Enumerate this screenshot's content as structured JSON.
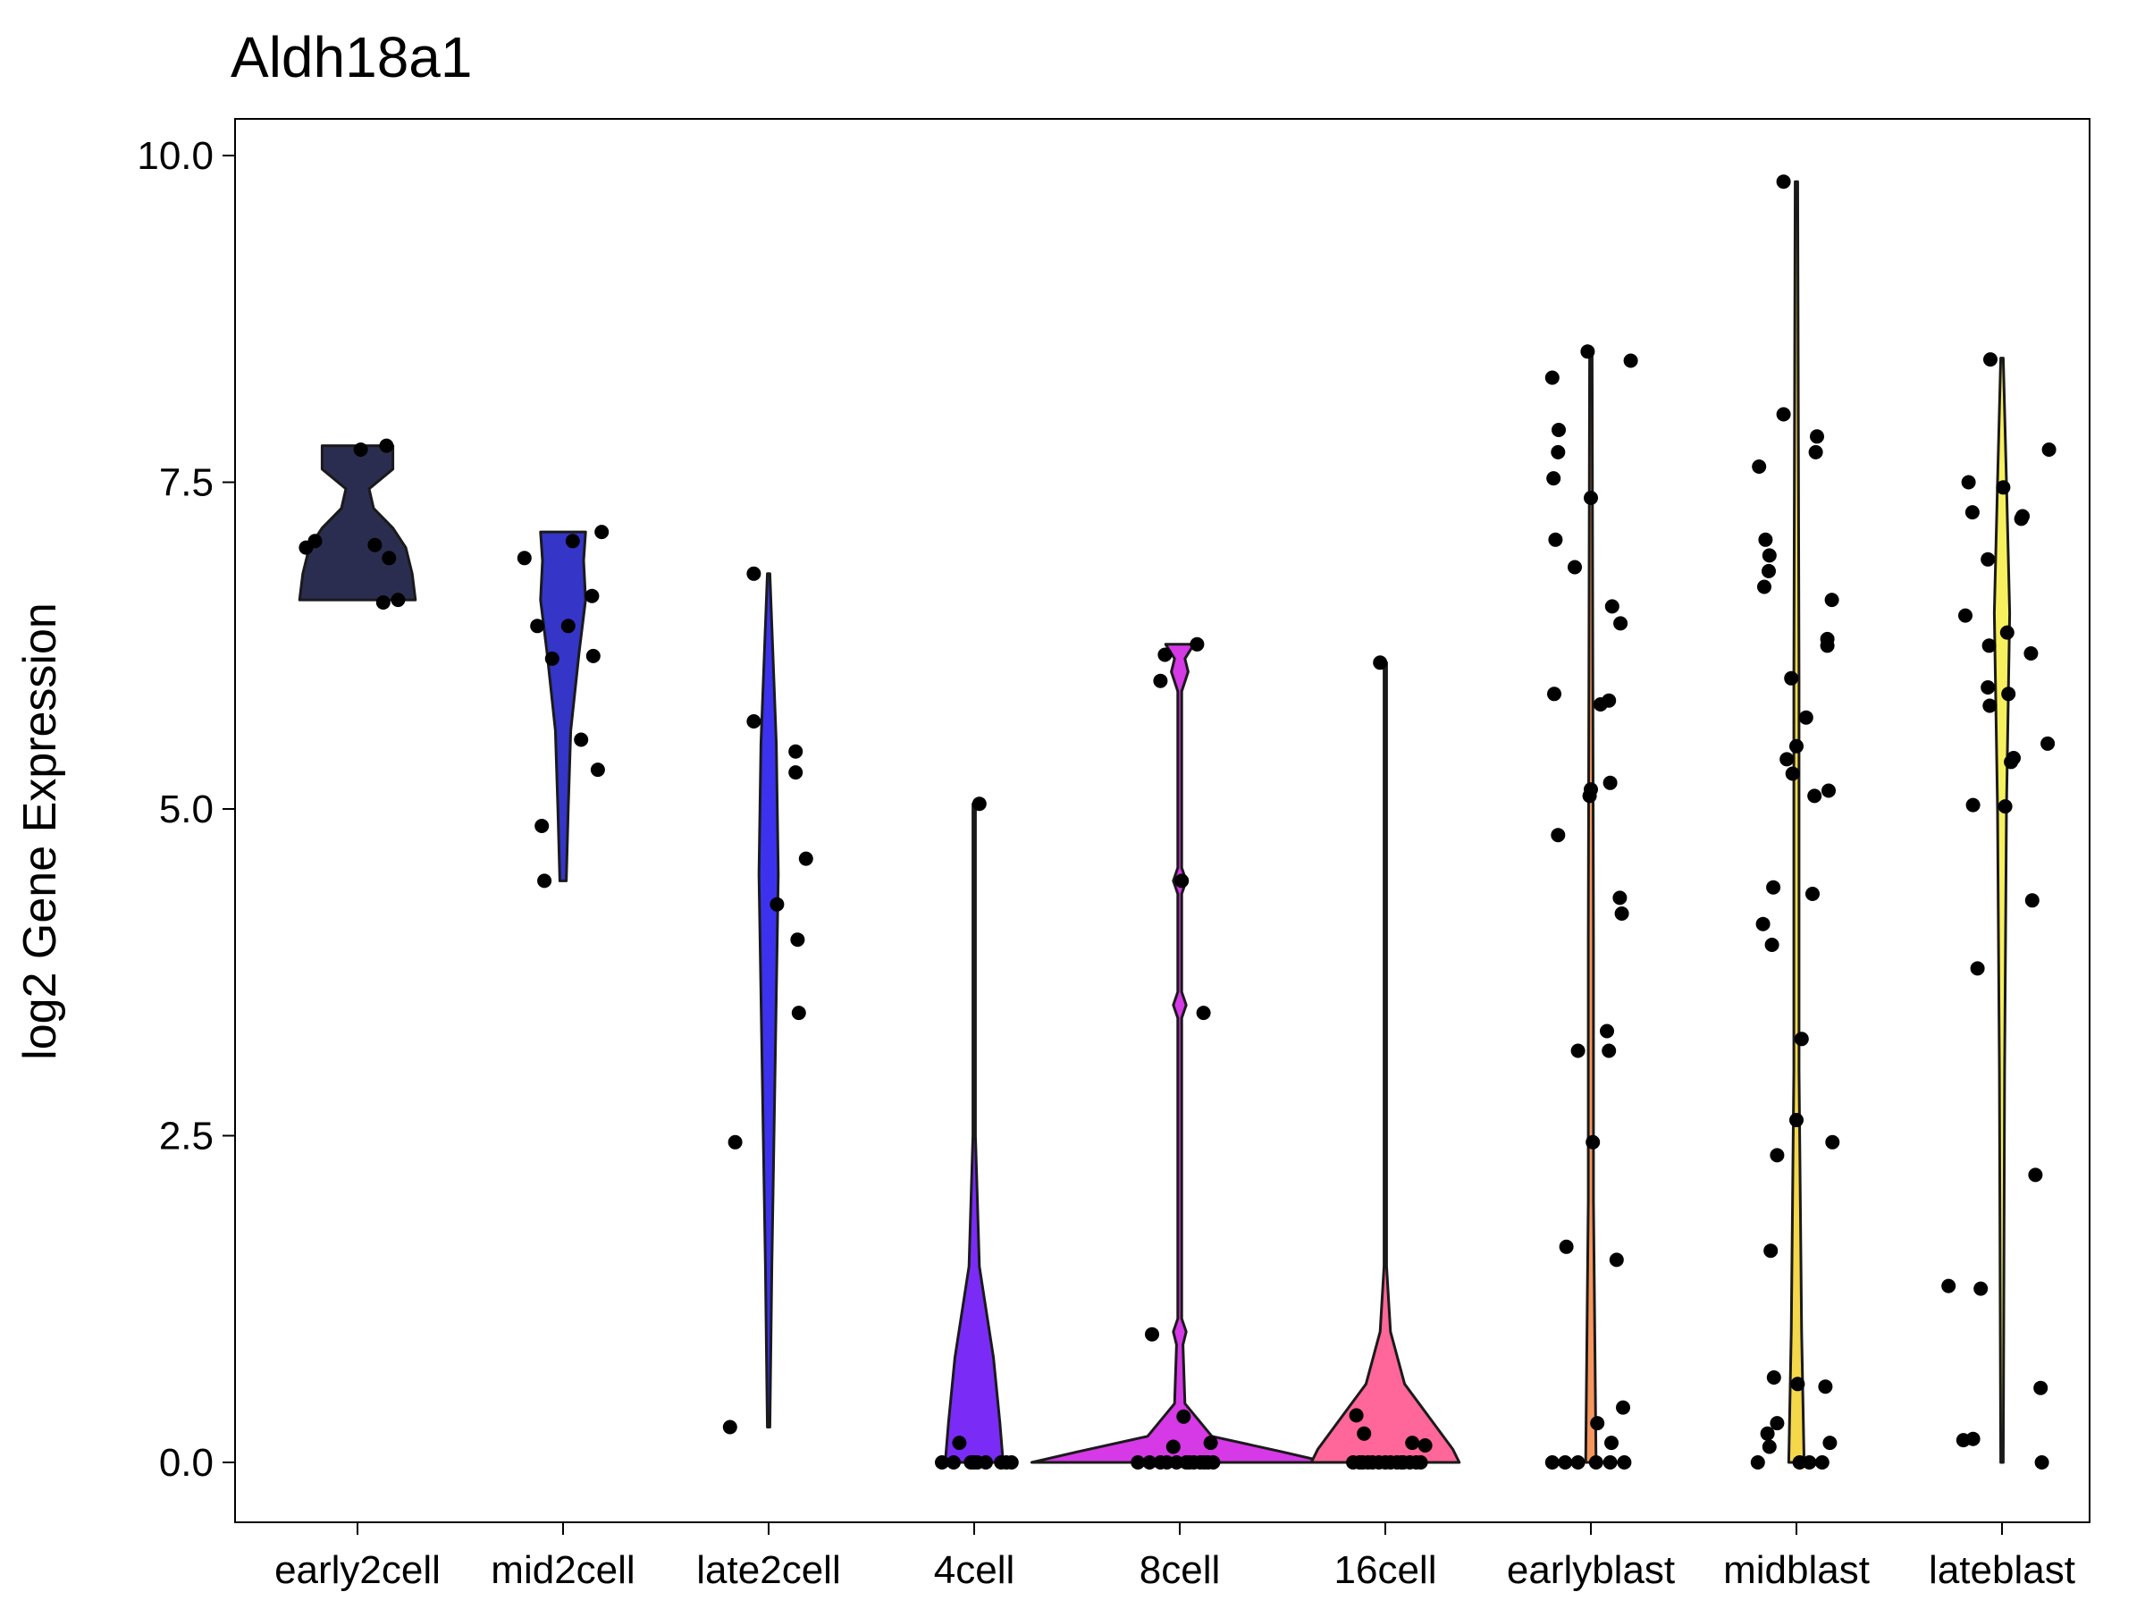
{
  "chart_data": {
    "type": "violin",
    "title": "Aldh18a1",
    "xlabel": "",
    "ylabel": "log2 Gene Expression",
    "ylim": [
      -0.4,
      10.5
    ],
    "yticks": [
      "0.0",
      "2.5",
      "5.0",
      "7.5",
      "10.0"
    ],
    "ytick_values": [
      0,
      2.5,
      5,
      7.5,
      10
    ],
    "grid": false,
    "categories": [
      "early2cell",
      "mid2cell",
      "late2cell",
      "4cell",
      "8cell",
      "16cell",
      "earlyblast",
      "midblast",
      "lateblast"
    ],
    "colors": [
      "#2b2d50",
      "#3535c8",
      "#3c32ee",
      "#7a2cf6",
      "#d639e6",
      "#ff6699",
      "#f7965c",
      "#f5d84a",
      "#f7f05e"
    ],
    "violins": [
      {
        "min": 6.6,
        "max": 7.78,
        "profile": [
          [
            6.6,
            0.9
          ],
          [
            6.8,
            0.85
          ],
          [
            7.0,
            0.75
          ],
          [
            7.15,
            0.55
          ],
          [
            7.3,
            0.25
          ],
          [
            7.45,
            0.18
          ],
          [
            7.6,
            0.55
          ],
          [
            7.78,
            0.55
          ]
        ]
      },
      {
        "min": 4.45,
        "max": 7.12,
        "profile": [
          [
            4.45,
            0.05
          ],
          [
            5.0,
            0.08
          ],
          [
            5.6,
            0.12
          ],
          [
            6.2,
            0.25
          ],
          [
            6.6,
            0.35
          ],
          [
            6.9,
            0.32
          ],
          [
            7.12,
            0.35
          ]
        ]
      },
      {
        "min": 0.27,
        "max": 6.8,
        "profile": [
          [
            0.27,
            0.02
          ],
          [
            1.5,
            0.05
          ],
          [
            3.0,
            0.1
          ],
          [
            4.5,
            0.15
          ],
          [
            5.5,
            0.12
          ],
          [
            6.8,
            0.02
          ]
        ]
      },
      {
        "min": 0.0,
        "max": 5.04,
        "profile": [
          [
            0.0,
            0.45
          ],
          [
            0.3,
            0.4
          ],
          [
            0.8,
            0.3
          ],
          [
            1.5,
            0.08
          ],
          [
            2.5,
            0.02
          ],
          [
            5.04,
            0.02
          ]
        ]
      },
      {
        "min": 0.0,
        "max": 6.26,
        "profile": [
          [
            0.0,
            2.3
          ],
          [
            0.08,
            1.6
          ],
          [
            0.2,
            0.5
          ],
          [
            0.45,
            0.08
          ],
          [
            0.9,
            0.05
          ],
          [
            1.0,
            0.1
          ],
          [
            1.1,
            0.03
          ],
          [
            3.4,
            0.03
          ],
          [
            3.5,
            0.1
          ],
          [
            3.6,
            0.03
          ],
          [
            4.35,
            0.03
          ],
          [
            4.45,
            0.1
          ],
          [
            4.55,
            0.03
          ],
          [
            5.9,
            0.03
          ],
          [
            6.05,
            0.13
          ],
          [
            6.15,
            0.08
          ],
          [
            6.26,
            0.22
          ]
        ]
      },
      {
        "min": 0.0,
        "max": 6.12,
        "profile": [
          [
            0.0,
            1.15
          ],
          [
            0.1,
            1.05
          ],
          [
            0.3,
            0.75
          ],
          [
            0.6,
            0.3
          ],
          [
            1.0,
            0.08
          ],
          [
            1.5,
            0.02
          ],
          [
            6.12,
            0.02
          ]
        ]
      },
      {
        "min": 0.0,
        "max": 8.5,
        "profile": [
          [
            0.0,
            0.08
          ],
          [
            2.0,
            0.04
          ],
          [
            4.0,
            0.04
          ],
          [
            6.0,
            0.03
          ],
          [
            8.5,
            0.02
          ]
        ]
      },
      {
        "min": 0.0,
        "max": 9.8,
        "profile": [
          [
            0.0,
            0.12
          ],
          [
            1.0,
            0.08
          ],
          [
            3.0,
            0.04
          ],
          [
            6.0,
            0.04
          ],
          [
            9.8,
            0.02
          ]
        ]
      },
      {
        "min": 0.0,
        "max": 8.45,
        "profile": [
          [
            0.0,
            0.02
          ],
          [
            3.0,
            0.04
          ],
          [
            5.0,
            0.07
          ],
          [
            6.5,
            0.12
          ],
          [
            7.5,
            0.07
          ],
          [
            8.45,
            0.02
          ]
        ]
      }
    ],
    "points": [
      [
        [
          -0.8,
          7.0
        ],
        [
          -0.66,
          7.05
        ],
        [
          0.05,
          7.75
        ],
        [
          0.27,
          7.02
        ],
        [
          0.4,
          6.58
        ],
        [
          0.49,
          6.92
        ],
        [
          0.63,
          6.6
        ],
        [
          0.45,
          7.78
        ]
      ],
      [
        [
          -0.6,
          6.92
        ],
        [
          -0.4,
          6.4
        ],
        [
          -0.17,
          6.15
        ],
        [
          -0.33,
          4.87
        ],
        [
          -0.29,
          4.45
        ],
        [
          0.08,
          6.4
        ],
        [
          0.15,
          7.05
        ],
        [
          0.28,
          5.53
        ],
        [
          0.45,
          6.63
        ],
        [
          0.47,
          6.17
        ],
        [
          0.54,
          5.3
        ],
        [
          0.6,
          7.12
        ]
      ],
      [
        [
          -0.6,
          0.27
        ],
        [
          -0.52,
          2.45
        ],
        [
          -0.23,
          6.8
        ],
        [
          -0.23,
          5.67
        ],
        [
          0.13,
          4.27
        ],
        [
          0.42,
          5.44
        ],
        [
          0.42,
          5.28
        ],
        [
          0.45,
          4.0
        ],
        [
          0.47,
          3.44
        ],
        [
          0.58,
          4.62
        ]
      ],
      [
        [
          -0.5,
          0.0
        ],
        [
          -0.32,
          0.0
        ],
        [
          -0.23,
          0.15
        ],
        [
          -0.05,
          0.0
        ],
        [
          0.0,
          0.0
        ],
        [
          0.05,
          0.0
        ],
        [
          0.08,
          5.04
        ],
        [
          0.18,
          0.0
        ],
        [
          0.42,
          0.0
        ],
        [
          0.5,
          0.0
        ],
        [
          0.58,
          0.0
        ]
      ],
      [
        [
          -0.65,
          0.0
        ],
        [
          -0.47,
          0.0
        ],
        [
          -0.43,
          0.98
        ],
        [
          -0.3,
          5.98
        ],
        [
          -0.23,
          6.18
        ],
        [
          -0.3,
          0.0
        ],
        [
          -0.1,
          0.12
        ],
        [
          -0.05,
          0.0
        ],
        [
          0.03,
          4.45
        ],
        [
          0.06,
          0.35
        ],
        [
          0.15,
          0.0
        ],
        [
          0.27,
          6.26
        ],
        [
          0.37,
          3.44
        ],
        [
          0.38,
          0.0
        ],
        [
          0.48,
          0.15
        ],
        [
          0.52,
          0.0
        ],
        [
          -0.2,
          0.0
        ],
        [
          0.1,
          0.0
        ],
        [
          0.22,
          0.0
        ],
        [
          0.32,
          0.0
        ],
        [
          0.44,
          0.0
        ]
      ],
      [
        [
          -0.5,
          0.0
        ],
        [
          -0.45,
          0.36
        ],
        [
          -0.4,
          0.0
        ],
        [
          -0.33,
          0.22
        ],
        [
          -0.27,
          0.0
        ],
        [
          -0.2,
          0.0
        ],
        [
          -0.08,
          6.12
        ],
        [
          -0.1,
          0.0
        ],
        [
          0.0,
          0.0
        ],
        [
          0.08,
          0.0
        ],
        [
          0.18,
          0.0
        ],
        [
          0.28,
          0.0
        ],
        [
          0.38,
          0.0
        ],
        [
          0.42,
          0.15
        ],
        [
          0.48,
          0.0
        ],
        [
          0.55,
          0.0
        ],
        [
          0.62,
          0.13
        ],
        [
          -0.35,
          0.0
        ],
        [
          0.25,
          0.0
        ]
      ],
      [
        [
          -0.6,
          8.3
        ],
        [
          -0.58,
          7.53
        ],
        [
          -0.55,
          7.06
        ],
        [
          -0.5,
          7.9
        ],
        [
          -0.51,
          7.73
        ],
        [
          -0.57,
          5.88
        ],
        [
          -0.51,
          4.8
        ],
        [
          -0.6,
          0.0
        ],
        [
          -0.38,
          1.65
        ],
        [
          -0.25,
          6.85
        ],
        [
          -0.2,
          3.15
        ],
        [
          -0.05,
          8.5
        ],
        [
          0.0,
          7.38
        ],
        [
          -0.02,
          5.1
        ],
        [
          0.0,
          5.15
        ],
        [
          0.03,
          2.45
        ],
        [
          0.08,
          0.0
        ],
        [
          0.1,
          0.3
        ],
        [
          0.15,
          5.8
        ],
        [
          0.25,
          3.3
        ],
        [
          0.28,
          3.15
        ],
        [
          0.28,
          5.83
        ],
        [
          0.3,
          5.2
        ],
        [
          0.32,
          0.15
        ],
        [
          0.33,
          6.55
        ],
        [
          0.4,
          1.55
        ],
        [
          0.45,
          4.32
        ],
        [
          0.46,
          6.42
        ],
        [
          0.48,
          4.2
        ],
        [
          0.5,
          0.42
        ],
        [
          0.52,
          0.0
        ],
        [
          0.62,
          8.43
        ],
        [
          -0.4,
          0.0
        ],
        [
          -0.2,
          0.0
        ],
        [
          0.3,
          0.0
        ]
      ],
      [
        [
          -0.58,
          7.62
        ],
        [
          -0.52,
          4.12
        ],
        [
          -0.5,
          6.7
        ],
        [
          -0.48,
          7.06
        ],
        [
          -0.45,
          0.22
        ],
        [
          -0.43,
          6.82
        ],
        [
          -0.42,
          6.94
        ],
        [
          -0.4,
          1.62
        ],
        [
          -0.38,
          3.96
        ],
        [
          -0.36,
          4.4
        ],
        [
          -0.3,
          2.35
        ],
        [
          -0.2,
          8.02
        ],
        [
          -0.15,
          5.38
        ],
        [
          -0.08,
          6.0
        ],
        [
          -0.06,
          5.27
        ],
        [
          0.0,
          5.48
        ],
        [
          0.0,
          2.62
        ],
        [
          0.02,
          0.6
        ],
        [
          0.08,
          3.24
        ],
        [
          0.15,
          5.7
        ],
        [
          0.25,
          4.35
        ],
        [
          0.28,
          5.1
        ],
        [
          0.3,
          7.73
        ],
        [
          0.32,
          7.85
        ],
        [
          0.45,
          0.58
        ],
        [
          0.48,
          6.25
        ],
        [
          0.48,
          6.3
        ],
        [
          0.5,
          5.14
        ],
        [
          0.52,
          0.15
        ],
        [
          0.55,
          6.6
        ],
        [
          0.56,
          2.45
        ],
        [
          -0.42,
          0.12
        ],
        [
          -0.35,
          0.65
        ],
        [
          -0.3,
          0.3
        ],
        [
          -0.2,
          9.8
        ],
        [
          0.05,
          0.0
        ],
        [
          0.2,
          0.0
        ],
        [
          -0.6,
          0.0
        ],
        [
          0.4,
          0.0
        ]
      ],
      [
        [
          -0.6,
          0.17
        ],
        [
          -0.57,
          6.48
        ],
        [
          -0.52,
          7.5
        ],
        [
          -0.46,
          7.27
        ],
        [
          -0.45,
          5.03
        ],
        [
          -0.45,
          0.18
        ],
        [
          -0.38,
          3.78
        ],
        [
          -0.33,
          1.33
        ],
        [
          -0.22,
          6.91
        ],
        [
          -0.22,
          5.93
        ],
        [
          -0.2,
          6.25
        ],
        [
          -0.19,
          5.79
        ],
        [
          -0.18,
          8.44
        ],
        [
          0.02,
          7.46
        ],
        [
          0.05,
          5.02
        ],
        [
          0.08,
          6.35
        ],
        [
          0.1,
          5.88
        ],
        [
          0.14,
          5.36
        ],
        [
          0.18,
          5.39
        ],
        [
          0.3,
          7.22
        ],
        [
          0.32,
          7.24
        ],
        [
          0.45,
          6.19
        ],
        [
          0.47,
          4.3
        ],
        [
          0.52,
          2.2
        ],
        [
          0.6,
          0.57
        ],
        [
          0.62,
          0.0
        ],
        [
          0.71,
          5.5
        ],
        [
          0.73,
          7.75
        ],
        [
          -0.83,
          1.35
        ]
      ]
    ]
  }
}
